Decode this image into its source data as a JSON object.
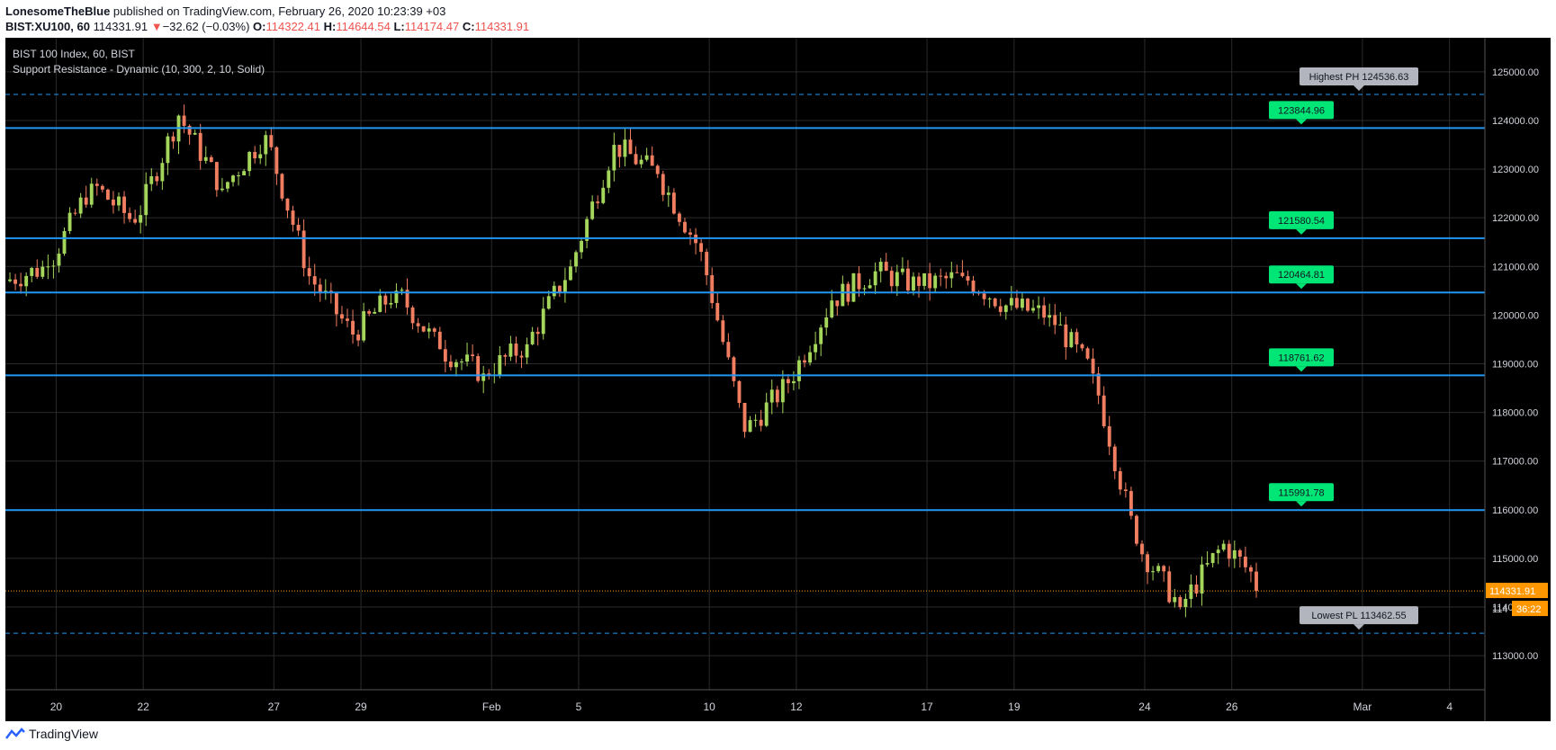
{
  "header": {
    "author": "LonesomeTheBlue",
    "published": "published on TradingView.com, February 26, 2020 10:23:39 +03"
  },
  "ohlc": {
    "symbol": "BIST:XU100, 60",
    "last": "114331.91",
    "arrow": "▼",
    "change": "−32.62 (−0.03%)",
    "o_label": "O:",
    "o": "114322.41",
    "h_label": "H:",
    "h": "114644.54",
    "l_label": "L:",
    "l": "114174.47",
    "c_label": "C:",
    "c": "114331.91"
  },
  "legend": {
    "title": "BIST 100 Index, 60, BIST",
    "indicator": "Support Resistance - Dynamic (10, 300, 2, 10, Solid)"
  },
  "footer": {
    "brand": "TradingView"
  },
  "colors": {
    "background": "#000000",
    "grid": "#2a2a2a",
    "up": "#a5d65c",
    "down": "#f27e61",
    "level": "#2196f3",
    "level_label": "#00e676",
    "extreme_label": "#b2b5be",
    "price_tag": "#ff9800"
  },
  "chart_data": {
    "type": "candlestick",
    "symbol": "BIST 100 Index",
    "interval": "60",
    "ylim": [
      112300,
      125700
    ],
    "yticks": [
      125000,
      124000,
      123000,
      122000,
      121000,
      120000,
      119000,
      118000,
      117000,
      116000,
      115000,
      114000,
      113000
    ],
    "ytick_labels": [
      "125000.00",
      "124000.00",
      "123000.00",
      "122000.00",
      "121000.00",
      "120000.00",
      "119000.00",
      "118000.00",
      "117000.00",
      "116000.00",
      "115000.00",
      "114000.00",
      "113000.00"
    ],
    "xticks": [
      "20",
      "22",
      "27",
      "29",
      "Feb",
      "5",
      "10",
      "12",
      "17",
      "19",
      "24",
      "26",
      "Mar",
      "4"
    ],
    "sessions": [
      "Jan17",
      "Jan20",
      "Jan21",
      "Jan22",
      "Jan23",
      "Jan24",
      "Jan27",
      "Jan28",
      "Jan29",
      "Jan30",
      "Jan31",
      "Feb3",
      "Feb4",
      "Feb5",
      "Feb6",
      "Feb7",
      "Feb10",
      "Feb11",
      "Feb12",
      "Feb13",
      "Feb14",
      "Feb17",
      "Feb18",
      "Feb19",
      "Feb20",
      "Feb21",
      "Feb24",
      "Feb25",
      "Feb26"
    ],
    "bars_per_session": 8,
    "session_closes": [
      121000,
      122700,
      121900,
      124100,
      122600,
      123700,
      120800,
      119600,
      120500,
      119300,
      118800,
      119400,
      121000,
      123500,
      122900,
      121300,
      117600,
      118600,
      120300,
      120900,
      120600,
      120800,
      120200,
      120000,
      118800,
      115300,
      114000,
      115300,
      114330
    ],
    "resistance_levels": [
      {
        "value": 123844.96,
        "label": "123844.96"
      },
      {
        "value": 121580.54,
        "label": "121580.54"
      },
      {
        "value": 120464.81,
        "label": "120464.81"
      },
      {
        "value": 118761.62,
        "label": "118761.62"
      },
      {
        "value": 115991.78,
        "label": "115991.78"
      }
    ],
    "highest_ph": {
      "value": 124536.63,
      "label": "Highest PH 124536.63"
    },
    "lowest_pl": {
      "value": 113462.55,
      "label": "Lowest PL 113462.55"
    },
    "last_price": {
      "value": 114331.91,
      "label": "114331.91",
      "partial_label": "114",
      "countdown": "36:22"
    }
  }
}
